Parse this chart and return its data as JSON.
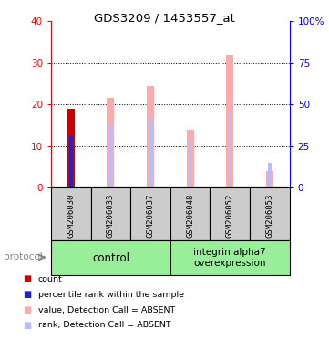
{
  "title": "GDS3209 / 1453557_at",
  "samples": [
    "GSM206030",
    "GSM206033",
    "GSM206037",
    "GSM206048",
    "GSM206052",
    "GSM206053"
  ],
  "value_bars": [
    null,
    21.5,
    24.5,
    14.0,
    32.0,
    4.0
  ],
  "rank_bars": [
    null,
    15.0,
    16.5,
    11.5,
    19.0,
    6.0
  ],
  "count_bars": [
    19.0,
    null,
    null,
    null,
    null,
    null
  ],
  "percentile_bars": [
    12.5,
    null,
    null,
    null,
    null,
    null
  ],
  "ylim_left": [
    0,
    40
  ],
  "ylim_right": [
    0,
    100
  ],
  "yticks_left": [
    0,
    10,
    20,
    30,
    40
  ],
  "yticks_right": [
    0,
    25,
    50,
    75,
    100
  ],
  "ytick_labels_right": [
    "0",
    "25",
    "50",
    "75",
    "100%"
  ],
  "gridlines": [
    10,
    20,
    30
  ],
  "color_count": "#cc0000",
  "color_percentile": "#2222cc",
  "color_value_absent": "#ffaaaa",
  "color_rank_absent": "#bbbbff",
  "color_group_bg": "#99ee99",
  "color_sample_bg": "#cccccc",
  "wide_bar_width": 0.18,
  "narrow_bar_width": 0.08,
  "legend_items": [
    {
      "label": "count",
      "color": "#cc0000"
    },
    {
      "label": "percentile rank within the sample",
      "color": "#2222cc"
    },
    {
      "label": "value, Detection Call = ABSENT",
      "color": "#ffaaaa"
    },
    {
      "label": "rank, Detection Call = ABSENT",
      "color": "#bbbbff"
    }
  ],
  "group_divider": 2.5,
  "control_label": "control",
  "overexp_label": "integrin alpha7\noverexpression",
  "protocol_label": "protocol"
}
